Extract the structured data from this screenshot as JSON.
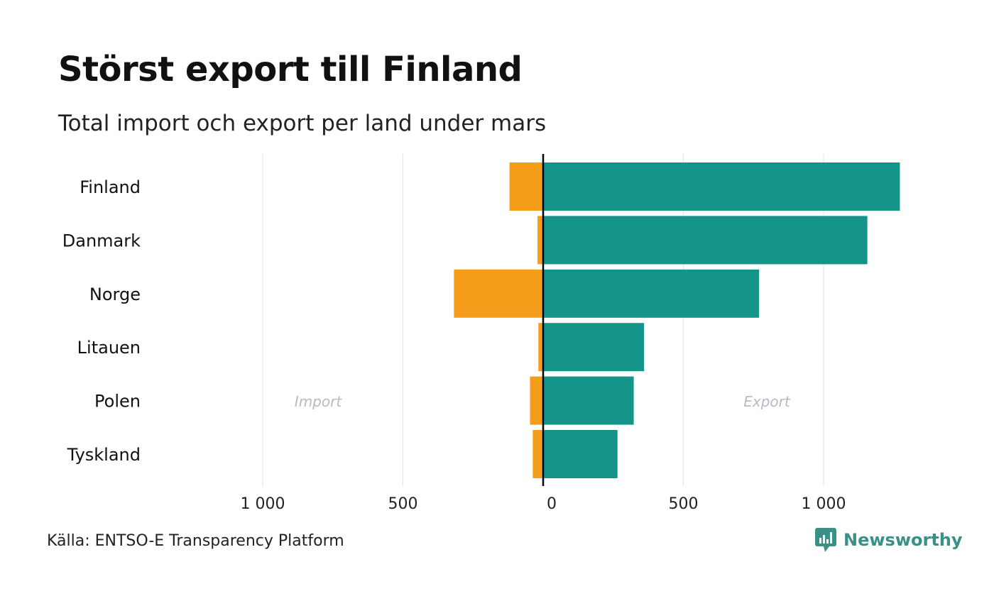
{
  "title": "Störst export till Finland",
  "subtitle": "Total import och export per land under mars",
  "source": "Källa: ENTSO-E Transparency Platform",
  "brand": "Newsworthy",
  "colors": {
    "import": "#f59c1a",
    "export": "#15958a",
    "grid": "#e6e6e6",
    "annotation": "#b9b9c3",
    "brand": "#3a8f86"
  },
  "chart_data": {
    "type": "bar",
    "orientation": "horizontal-diverging",
    "categories": [
      "Finland",
      "Danmark",
      "Norge",
      "Litauen",
      "Polen",
      "Tyskland"
    ],
    "series": [
      {
        "name": "Import",
        "values": [
          120,
          20,
          318,
          17,
          47,
          37
        ]
      },
      {
        "name": "Export",
        "values": [
          1272,
          1156,
          770,
          360,
          323,
          265
        ]
      }
    ],
    "xlim": [
      -1000,
      1300
    ],
    "xticks": [
      -1000,
      -500,
      0,
      500,
      1000
    ],
    "xtick_labels": [
      "1 000",
      "500",
      "0",
      "500",
      "1 000"
    ],
    "annotations": {
      "left": "Import",
      "right": "Export"
    },
    "grid": true
  }
}
